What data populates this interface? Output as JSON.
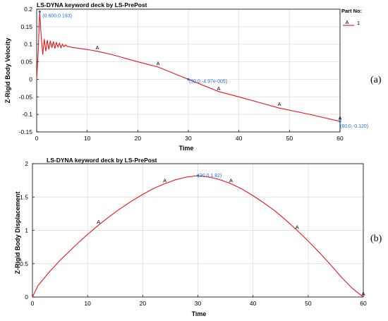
{
  "chart_data": [
    {
      "type": "line",
      "title": "LS-DYNA keyword deck by LS-PrePost",
      "xlabel": "Time",
      "ylabel": "Z-Rigid Body Velocity",
      "xlim": [
        0,
        60
      ],
      "ylim": [
        -0.15,
        0.2
      ],
      "xticks": [
        0,
        10,
        20,
        30,
        40,
        50,
        60
      ],
      "xtick_labels": [
        "0",
        "10",
        "20",
        "30",
        "40",
        "50",
        "60"
      ],
      "yticks": [
        -0.15,
        -0.1,
        -0.05,
        0,
        0.05,
        0.1,
        0.15,
        0.2
      ],
      "ytick_labels": [
        "-0.15",
        "-0.1",
        "-0.05",
        "0",
        "0.05",
        "0.1",
        "0.15",
        "0.2"
      ],
      "grid": true,
      "legend": {
        "title": "Part No:",
        "placement": "top-right",
        "entries": [
          {
            "marker": "A",
            "label": "1"
          }
        ]
      },
      "series": [
        {
          "name": "1",
          "color": "#e8151b",
          "x": [
            0,
            0.3,
            0.6,
            0.9,
            1.2,
            1.5,
            1.8,
            2.1,
            2.4,
            2.7,
            3.0,
            3.3,
            3.6,
            3.9,
            4.2,
            4.5,
            4.8,
            5.1,
            5.4,
            5.7,
            6.0,
            6.5,
            7.0,
            8.0,
            9.0,
            10.0,
            12.0,
            15.0,
            20.0,
            24.0,
            30.0,
            36.0,
            40.0,
            48.0,
            54.0,
            60.0
          ],
          "y": [
            0.0,
            0.08,
            0.193,
            0.12,
            0.07,
            0.115,
            0.08,
            0.112,
            0.085,
            0.11,
            0.09,
            0.108,
            0.088,
            0.105,
            0.092,
            0.103,
            0.09,
            0.1,
            0.093,
            0.098,
            0.094,
            0.093,
            0.091,
            0.089,
            0.087,
            0.085,
            0.08,
            0.07,
            0.05,
            0.035,
            0.0,
            -0.035,
            -0.05,
            -0.082,
            -0.1,
            -0.12
          ],
          "markers": [
            {
              "label": "A",
              "x": 12,
              "y": 0.081
            },
            {
              "label": "A",
              "x": 24,
              "y": 0.036
            },
            {
              "label": "A",
              "x": 36,
              "y": -0.035
            },
            {
              "label": "A",
              "x": 48,
              "y": -0.08
            },
            {
              "label": "A",
              "x": 60,
              "y": -0.12
            }
          ]
        }
      ],
      "annotations": [
        {
          "text": "(0.600,0.193)",
          "x": 0.6,
          "y": 0.193
        },
        {
          "text": "(30.0,-4.97e-005)",
          "x": 30.0,
          "y": 0.0
        },
        {
          "text": "(60.0,-0.120)",
          "x": 60.0,
          "y": -0.12
        }
      ],
      "panel_label": "(a)"
    },
    {
      "type": "line",
      "title": "LS-DYNA keyword deck by LS-PrePost",
      "xlabel": "Time",
      "ylabel": "Z-Rigid Body Displacement",
      "xlim": [
        0,
        60
      ],
      "ylim": [
        0,
        2
      ],
      "xticks": [
        0,
        10,
        20,
        30,
        40,
        50,
        60
      ],
      "xtick_labels": [
        "0",
        "10",
        "20",
        "30",
        "40",
        "50",
        "60"
      ],
      "yticks": [
        0,
        0.5,
        1,
        1.5,
        2
      ],
      "ytick_labels": [
        "0",
        "0.5",
        "1",
        "1.5",
        "2"
      ],
      "grid": true,
      "series": [
        {
          "name": "1",
          "color": "#e8151b",
          "x": [
            0,
            1,
            2,
            3,
            4,
            5,
            6,
            8,
            10,
            12,
            14,
            16,
            18,
            20,
            22,
            24,
            26,
            28,
            30,
            32,
            34,
            36,
            38,
            40,
            42,
            44,
            46,
            48,
            50,
            52,
            54,
            56,
            58,
            60
          ],
          "y": [
            0.0,
            0.17,
            0.27,
            0.37,
            0.46,
            0.55,
            0.63,
            0.79,
            0.94,
            1.08,
            1.21,
            1.33,
            1.44,
            1.54,
            1.63,
            1.7,
            1.76,
            1.8,
            1.82,
            1.8,
            1.76,
            1.7,
            1.62,
            1.52,
            1.41,
            1.29,
            1.15,
            1.0,
            0.84,
            0.67,
            0.49,
            0.3,
            0.13,
            0.0
          ],
          "markers": [
            {
              "label": "A",
              "x": 12,
              "y": 1.08
            },
            {
              "label": "A",
              "x": 24,
              "y": 1.7
            },
            {
              "label": "A",
              "x": 36,
              "y": 1.7
            },
            {
              "label": "A",
              "x": 48,
              "y": 1.0
            },
            {
              "label": "A",
              "x": 60,
              "y": 0.0
            }
          ]
        }
      ],
      "annotations": [
        {
          "text": "(30.0,1.82)",
          "x": 30.0,
          "y": 1.82
        }
      ],
      "panel_label": "(b)"
    }
  ]
}
